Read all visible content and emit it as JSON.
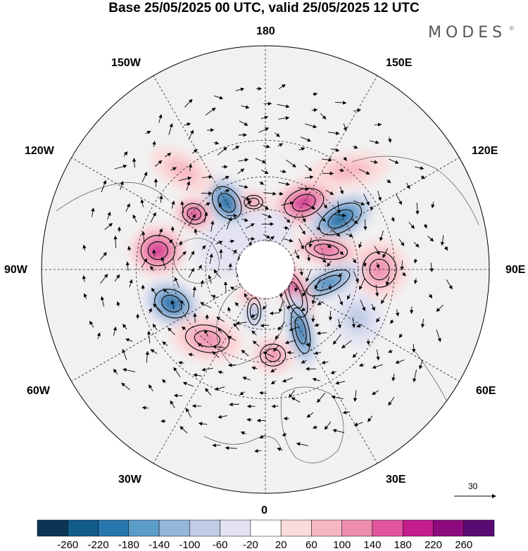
{
  "title": "Base 25/05/2025 00 UTC, valid 25/05/2025 12 UTC",
  "brand": {
    "name": "MODES",
    "mark": "©"
  },
  "longitude_labels": {
    "top": "180",
    "top_left": "150W",
    "top_right": "150E",
    "upper_left": "120W",
    "upper_right": "120E",
    "left": "90W",
    "right": "90E",
    "lower_left": "60W",
    "lower_right": "60E",
    "bottom_left": "30W",
    "bottom_right": "30E",
    "bottom": "0"
  },
  "reference_vector": {
    "value": "30"
  },
  "colorbar": {
    "colors": [
      "#0a3553",
      "#125c8a",
      "#2878b0",
      "#5c9cc9",
      "#93b6d9",
      "#c1cde6",
      "#e3e3f2",
      "#ffffff",
      "#fbdcdc",
      "#f6b7c4",
      "#ef8db0",
      "#e2559e",
      "#c41c8c",
      "#8e0b7f",
      "#5a0a73"
    ],
    "labels": [
      "-260",
      "-220",
      "-180",
      "-140",
      "-100",
      "-60",
      "-20",
      "20",
      "60",
      "100",
      "140",
      "180",
      "220",
      "260"
    ]
  },
  "map": {
    "projection": "north-polar-stereographic",
    "anomaly_blobs": [
      {
        "lon": -150,
        "lat": 52,
        "value": -220,
        "rx": 30,
        "ry": 42,
        "rot": -35
      },
      {
        "lon": -128,
        "lat": 46,
        "value": 180,
        "rx": 28,
        "ry": 24,
        "rot": 20
      },
      {
        "lon": -100,
        "lat": 38,
        "value": 200,
        "rx": 40,
        "ry": 36,
        "rot": 0
      },
      {
        "lon": -70,
        "lat": 42,
        "value": -240,
        "rx": 42,
        "ry": 32,
        "rot": 25
      },
      {
        "lon": -40,
        "lat": 46,
        "value": 100,
        "rx": 52,
        "ry": 32,
        "rot": 10
      },
      {
        "lon": -170,
        "lat": 56,
        "value": 120,
        "rx": 22,
        "ry": 16,
        "rot": 0
      },
      {
        "lon": 150,
        "lat": 52,
        "value": 180,
        "rx": 48,
        "ry": 32,
        "rot": -20
      },
      {
        "lon": 124,
        "lat": 46,
        "value": -240,
        "rx": 55,
        "ry": 30,
        "rot": -30
      },
      {
        "lon": 108,
        "lat": 58,
        "value": 160,
        "rx": 50,
        "ry": 22,
        "rot": 8
      },
      {
        "lon": 90,
        "lat": 36,
        "value": 120,
        "rx": 40,
        "ry": 42,
        "rot": 0
      },
      {
        "lon": 78,
        "lat": 58,
        "value": -180,
        "rx": 55,
        "ry": 22,
        "rot": -25
      },
      {
        "lon": 50,
        "lat": 70,
        "value": 180,
        "rx": 22,
        "ry": 55,
        "rot": -20
      },
      {
        "lon": 30,
        "lat": 55,
        "value": -220,
        "rx": 20,
        "ry": 55,
        "rot": -12
      },
      {
        "lon": 62,
        "lat": 40,
        "value": -80,
        "rx": 35,
        "ry": 40,
        "rot": -10
      },
      {
        "lon": -15,
        "lat": 68,
        "value": -120,
        "rx": 16,
        "ry": 32,
        "rot": 0
      },
      {
        "lon": -30,
        "lat": 75,
        "value": 60,
        "rx": 22,
        "ry": 16,
        "rot": 0
      },
      {
        "lon": 5,
        "lat": 48,
        "value": 100,
        "rx": 30,
        "ry": 26,
        "rot": 0
      },
      {
        "lon": -165,
        "lat": 80,
        "value": 80,
        "rx": 25,
        "ry": 18,
        "rot": 0
      },
      {
        "lon": 180,
        "lat": 70,
        "value": -40,
        "rx": 40,
        "ry": 30,
        "rot": 0
      },
      {
        "lon": -120,
        "lat": 68,
        "value": -40,
        "rx": 45,
        "ry": 40,
        "rot": 0
      },
      {
        "lon": 140,
        "lat": 30,
        "value": 60,
        "rx": 60,
        "ry": 25,
        "rot": -10
      },
      {
        "lon": -140,
        "lat": 30,
        "value": 60,
        "rx": 50,
        "ry": 25,
        "rot": 30
      }
    ]
  }
}
